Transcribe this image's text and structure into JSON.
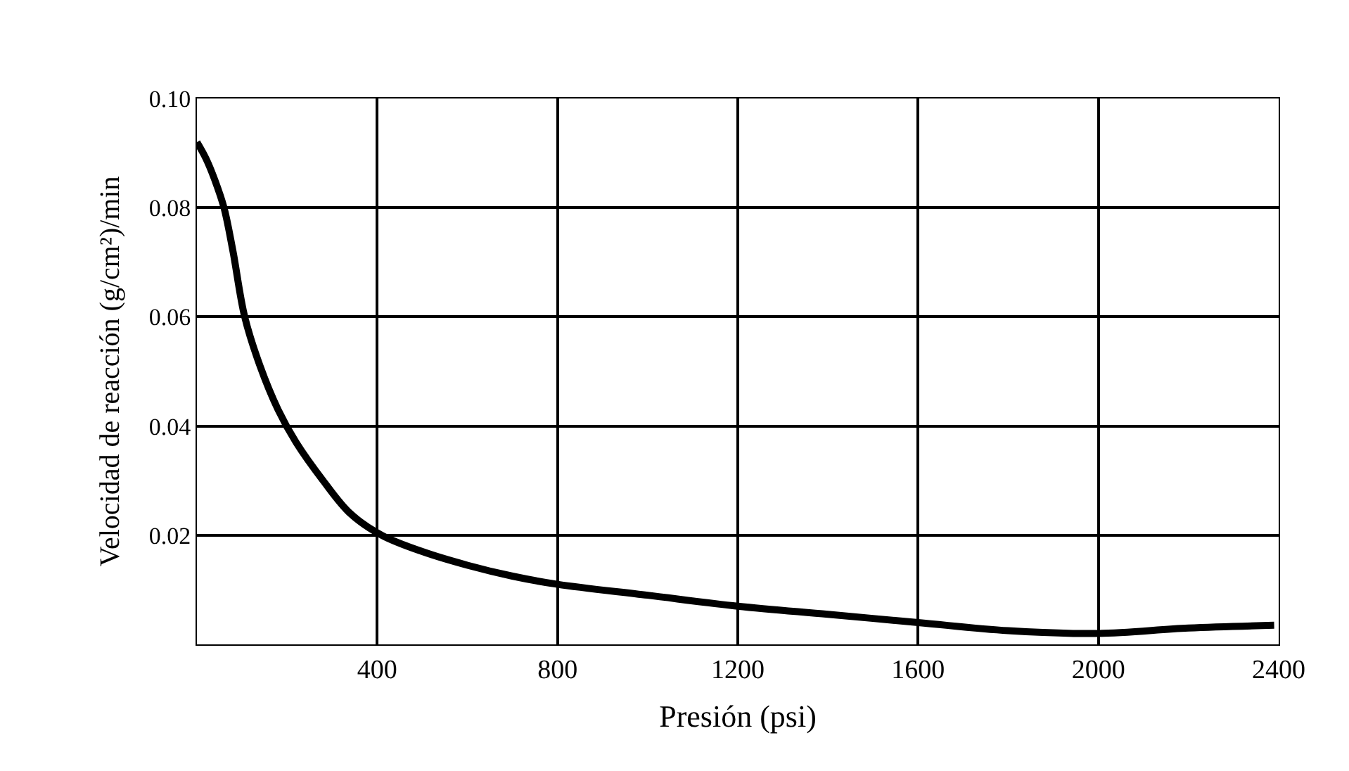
{
  "chart_data": {
    "type": "line",
    "xlabel": "Presión (psi)",
    "ylabel": "Velocidad de reacción (g/cm²)/min",
    "x": [
      0,
      20,
      40,
      60,
      80,
      106,
      140,
      180,
      220,
      280,
      340,
      410,
      500,
      600,
      700,
      800,
      1000,
      1200,
      1400,
      1600,
      1800,
      2000,
      2200,
      2390
    ],
    "series": [
      {
        "color": "#000000",
        "values": [
          0.092,
          0.089,
          0.085,
          0.08,
          0.072,
          0.06,
          0.051,
          0.043,
          0.037,
          0.03,
          0.024,
          0.02,
          0.017,
          0.0145,
          0.0125,
          0.011,
          0.009,
          0.007,
          0.0055,
          0.004,
          0.0025,
          0.002,
          0.003,
          0.0035
        ]
      }
    ],
    "xlim": [
      0,
      2400
    ],
    "ylim": [
      0,
      0.1
    ],
    "xticks": [
      400,
      800,
      1200,
      1600,
      2000,
      2400
    ],
    "yticks": [
      0.02,
      0.04,
      0.06,
      0.08,
      {
        "value": 0.1,
        "label": "0.10"
      }
    ],
    "grid": true,
    "legend": false,
    "marker": "none",
    "line_style": "solid"
  }
}
